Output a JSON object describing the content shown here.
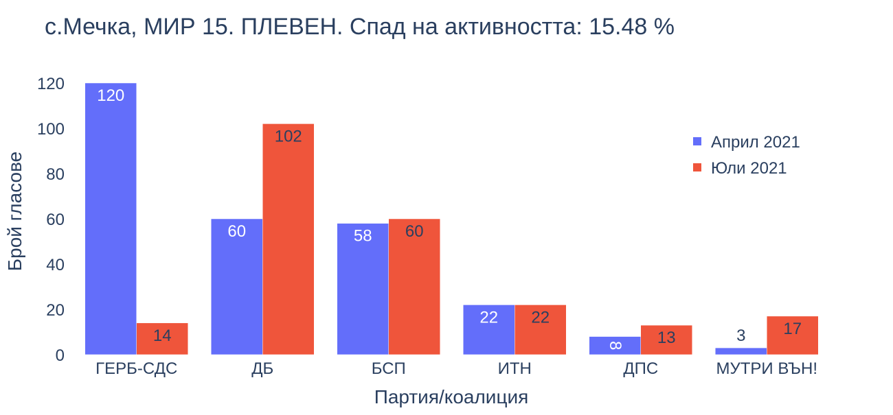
{
  "chart_data": {
    "type": "bar",
    "title": "с.Мечка, МИР 15. ПЛЕВЕН. Спад на активността: 15.48 %",
    "xlabel": "Партия/коалиция",
    "ylabel": "Брой гласове",
    "categories": [
      "ГЕРБ-СДС",
      "ДБ",
      "БСП",
      "ИТН",
      "ДПС",
      "МУТРИ ВЪН!"
    ],
    "series": [
      {
        "name": "Април 2021",
        "color": "#636efa",
        "values": [
          120,
          60,
          58,
          22,
          8,
          3
        ],
        "labels": [
          "120",
          "60",
          "58",
          "22",
          "8",
          "3"
        ]
      },
      {
        "name": "Юли 2021",
        "color": "#ef553b",
        "values": [
          14,
          102,
          60,
          22,
          13,
          17
        ],
        "labels": [
          "14",
          "102",
          "60",
          "22",
          "13",
          "17"
        ]
      }
    ],
    "ylim": [
      0,
      120
    ],
    "yticks": [
      0,
      20,
      40,
      60,
      80,
      100,
      120
    ],
    "ytick_labels": [
      "0",
      "20",
      "40",
      "60",
      "80",
      "100",
      "120"
    ],
    "grid": false,
    "legend_position": "top-right",
    "text_color": "#2a3f5f"
  }
}
